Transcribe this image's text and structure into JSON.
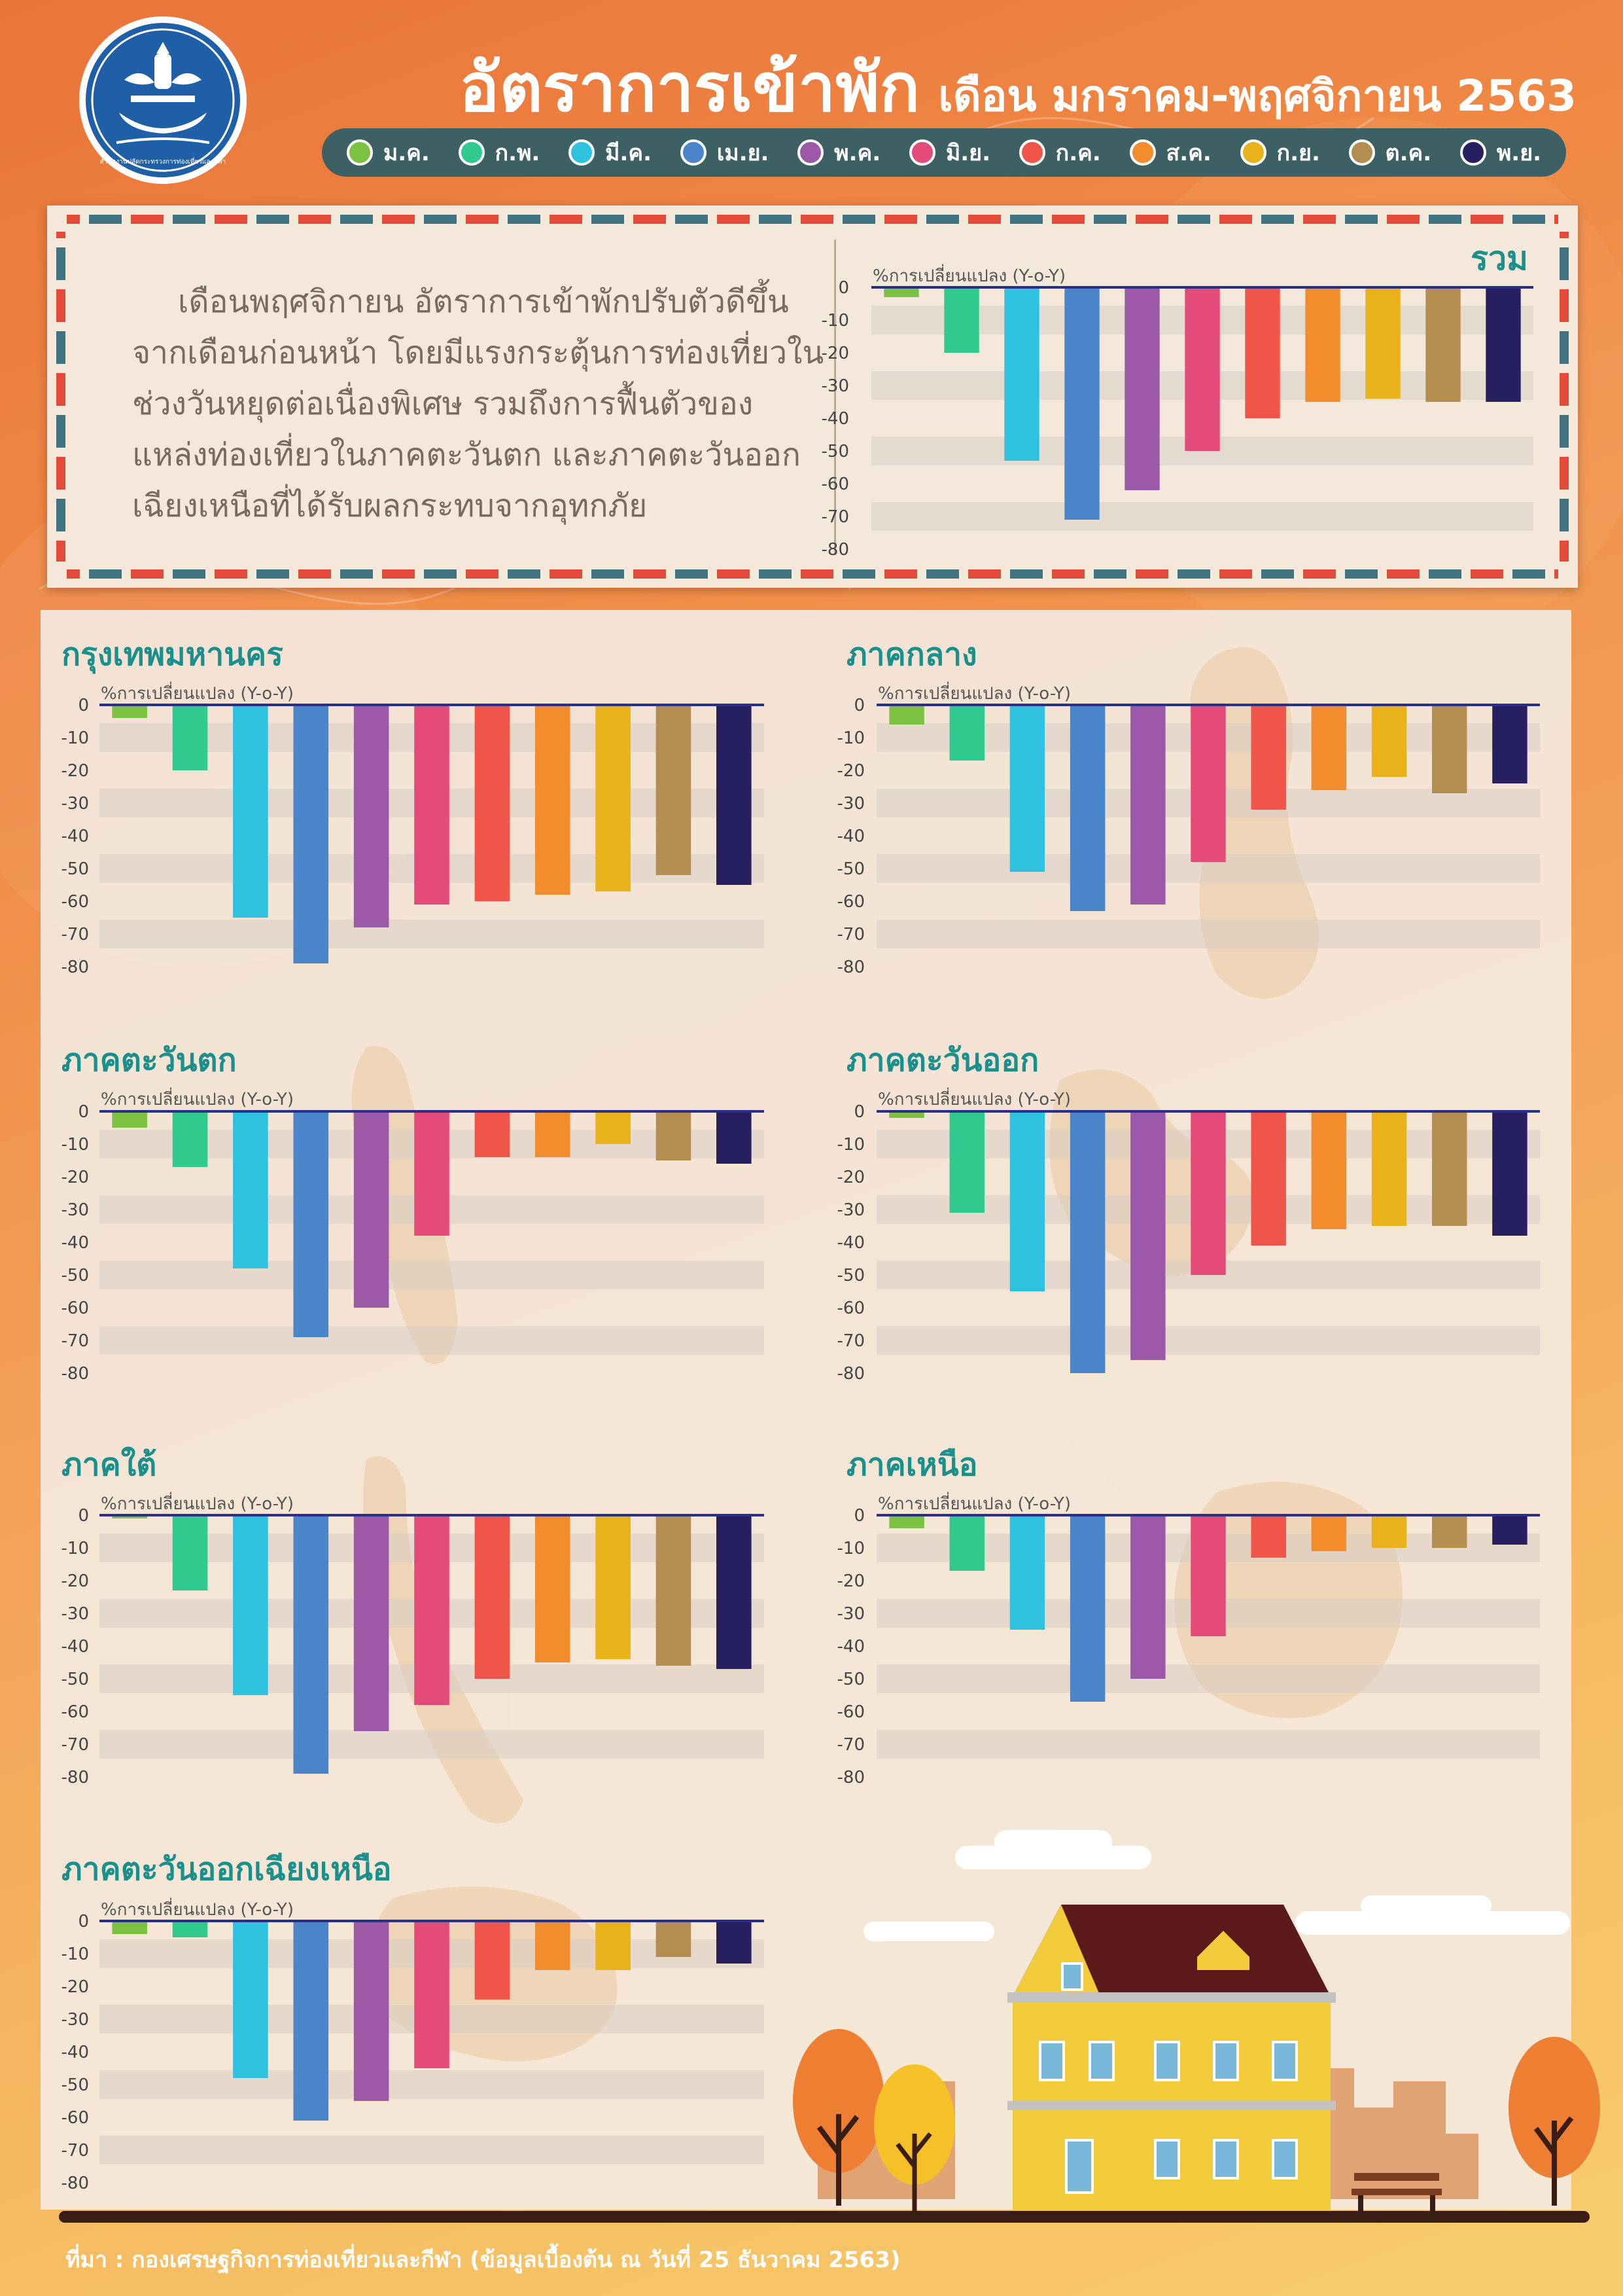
{
  "header": {
    "logo_caption": "สำนักงานปลัดกระทรวงการท่องเที่ยวและกีฬา",
    "title_main": "อัตราการเข้าพัก",
    "title_sub": "เดือน มกราคม-พฤศจิกายน 2563"
  },
  "legend": [
    {
      "label": "ม.ค.",
      "color": "#7dc143"
    },
    {
      "label": "ก.พ.",
      "color": "#32c98e"
    },
    {
      "label": "มี.ค.",
      "color": "#2ec2df"
    },
    {
      "label": "เม.ย.",
      "color": "#4a84c9"
    },
    {
      "label": "พ.ค.",
      "color": "#9b59a8"
    },
    {
      "label": "มิ.ย.",
      "color": "#e24b7a"
    },
    {
      "label": "ก.ค.",
      "color": "#ef5549"
    },
    {
      "label": "ส.ค.",
      "color": "#f28c2d"
    },
    {
      "label": "ก.ย.",
      "color": "#e9b21a"
    },
    {
      "label": "ต.ค.",
      "color": "#b48e50"
    },
    {
      "label": "พ.ย.",
      "color": "#272060"
    }
  ],
  "summary": {
    "text": "เดือนพฤศจิกายน อัตราการเข้าพักปรับตัวดีขึ้นจากเดือนก่อนหน้า โดยมีแรงกระตุ้นการท่องเที่ยวในช่วงวันหยุดต่อเนื่องพิเศษ รวมถึงการฟื้นตัวของแหล่งท่องเที่ยวในภาคตะวันตก และภาคตะวันออกเฉียงเหนือที่ได้รับผลกระทบจากอุทกภัย"
  },
  "chart_data": [
    {
      "type": "bar",
      "title": "รวม",
      "ylabel": "%การเปลี่ยนแปลง (Y-o-Y)",
      "ylim": [
        -80,
        0
      ],
      "categories": [
        "ม.ค.",
        "ก.พ.",
        "มี.ค.",
        "เม.ย.",
        "พ.ค.",
        "มิ.ย.",
        "ก.ค.",
        "ส.ค.",
        "ก.ย.",
        "ต.ค.",
        "พ.ย."
      ],
      "values": [
        -3,
        -20,
        -53,
        -71,
        -62,
        -50,
        -40,
        -35,
        -34,
        -35,
        -35
      ]
    },
    {
      "type": "bar",
      "title": "กรุงเทพมหานคร",
      "ylabel": "%การเปลี่ยนแปลง (Y-o-Y)",
      "ylim": [
        -80,
        0
      ],
      "categories": [
        "ม.ค.",
        "ก.พ.",
        "มี.ค.",
        "เม.ย.",
        "พ.ค.",
        "มิ.ย.",
        "ก.ค.",
        "ส.ค.",
        "ก.ย.",
        "ต.ค.",
        "พ.ย."
      ],
      "values": [
        -4,
        -20,
        -65,
        -79,
        -68,
        -61,
        -60,
        -58,
        -57,
        -52,
        -55
      ]
    },
    {
      "type": "bar",
      "title": "ภาคกลาง",
      "ylabel": "%การเปลี่ยนแปลง (Y-o-Y)",
      "ylim": [
        -80,
        0
      ],
      "categories": [
        "ม.ค.",
        "ก.พ.",
        "มี.ค.",
        "เม.ย.",
        "พ.ค.",
        "มิ.ย.",
        "ก.ค.",
        "ส.ค.",
        "ก.ย.",
        "ต.ค.",
        "พ.ย."
      ],
      "values": [
        -6,
        -17,
        -51,
        -63,
        -61,
        -48,
        -32,
        -26,
        -22,
        -27,
        -24
      ]
    },
    {
      "type": "bar",
      "title": "ภาคตะวันตก",
      "ylabel": "%การเปลี่ยนแปลง (Y-o-Y)",
      "ylim": [
        -80,
        0
      ],
      "categories": [
        "ม.ค.",
        "ก.พ.",
        "มี.ค.",
        "เม.ย.",
        "พ.ค.",
        "มิ.ย.",
        "ก.ค.",
        "ส.ค.",
        "ก.ย.",
        "ต.ค.",
        "พ.ย."
      ],
      "values": [
        -5,
        -17,
        -48,
        -69,
        -60,
        -38,
        -14,
        -14,
        -10,
        -15,
        -16
      ]
    },
    {
      "type": "bar",
      "title": "ภาคตะวันออก",
      "ylabel": "%การเปลี่ยนแปลง (Y-o-Y)",
      "ylim": [
        -80,
        0
      ],
      "categories": [
        "ม.ค.",
        "ก.พ.",
        "มี.ค.",
        "เม.ย.",
        "พ.ค.",
        "มิ.ย.",
        "ก.ค.",
        "ส.ค.",
        "ก.ย.",
        "ต.ค.",
        "พ.ย."
      ],
      "values": [
        -2,
        -31,
        -55,
        -80,
        -76,
        -50,
        -41,
        -36,
        -35,
        -35,
        -38
      ]
    },
    {
      "type": "bar",
      "title": "ภาคใต้",
      "ylabel": "%การเปลี่ยนแปลง (Y-o-Y)",
      "ylim": [
        -80,
        0
      ],
      "categories": [
        "ม.ค.",
        "ก.พ.",
        "มี.ค.",
        "เม.ย.",
        "พ.ค.",
        "มิ.ย.",
        "ก.ค.",
        "ส.ค.",
        "ก.ย.",
        "ต.ค.",
        "พ.ย."
      ],
      "values": [
        -1,
        -23,
        -55,
        -79,
        -66,
        -58,
        -50,
        -45,
        -44,
        -46,
        -47
      ]
    },
    {
      "type": "bar",
      "title": "ภาคเหนือ",
      "ylabel": "%การเปลี่ยนแปลง (Y-o-Y)",
      "ylim": [
        -80,
        0
      ],
      "categories": [
        "ม.ค.",
        "ก.พ.",
        "มี.ค.",
        "เม.ย.",
        "พ.ค.",
        "มิ.ย.",
        "ก.ค.",
        "ส.ค.",
        "ก.ย.",
        "ต.ค.",
        "พ.ย."
      ],
      "values": [
        -4,
        -17,
        -35,
        -57,
        -50,
        -37,
        -13,
        -11,
        -10,
        -10,
        -9
      ]
    },
    {
      "type": "bar",
      "title": "ภาคตะวันออกเฉียงเหนือ",
      "ylabel": "%การเปลี่ยนแปลง (Y-o-Y)",
      "ylim": [
        -80,
        0
      ],
      "categories": [
        "ม.ค.",
        "ก.พ.",
        "มี.ค.",
        "เม.ย.",
        "พ.ค.",
        "มิ.ย.",
        "ก.ค.",
        "ส.ค.",
        "ก.ย.",
        "ต.ค.",
        "พ.ย."
      ],
      "values": [
        -4,
        -5,
        -48,
        -61,
        -55,
        -45,
        -24,
        -15,
        -15,
        -11,
        -13
      ]
    }
  ],
  "footer": {
    "source": "ที่มา : กองเศรษฐกิจการท่องเที่ยวและกีฬา (ข้อมูลเบื้องต้น ณ วันที่ 25 ธันวาคม 2563)"
  }
}
